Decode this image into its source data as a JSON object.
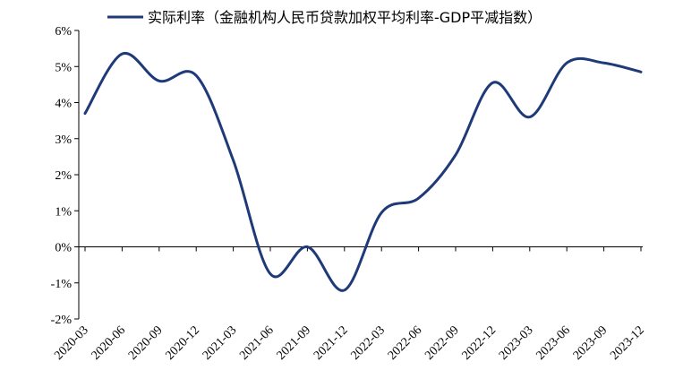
{
  "chart_data": {
    "type": "line",
    "title": "",
    "xlabel": "",
    "ylabel": "",
    "categories": [
      "2020-03",
      "2020-06",
      "2020-09",
      "2020-12",
      "2021-03",
      "2021-06",
      "2021-09",
      "2021-12",
      "2022-03",
      "2022-06",
      "2022-09",
      "2022-12",
      "2023-03",
      "2023-06",
      "2023-09",
      "2023-12"
    ],
    "y_tick_labels": [
      "6%",
      "5%",
      "4%",
      "3%",
      "2%",
      "1%",
      "0%",
      "-1%",
      "-2%"
    ],
    "ylim": [
      -2,
      6
    ],
    "series": [
      {
        "name": "实际利率（金融机构人民币贷款加权平均利率-GDP平减指数）",
        "color": "#1f3a78",
        "values": [
          3.7,
          5.35,
          4.6,
          4.75,
          2.4,
          -0.75,
          0.0,
          -1.2,
          0.95,
          1.35,
          2.55,
          4.55,
          3.6,
          5.1,
          5.1,
          4.85
        ]
      }
    ],
    "legend": "top",
    "grid": false
  }
}
